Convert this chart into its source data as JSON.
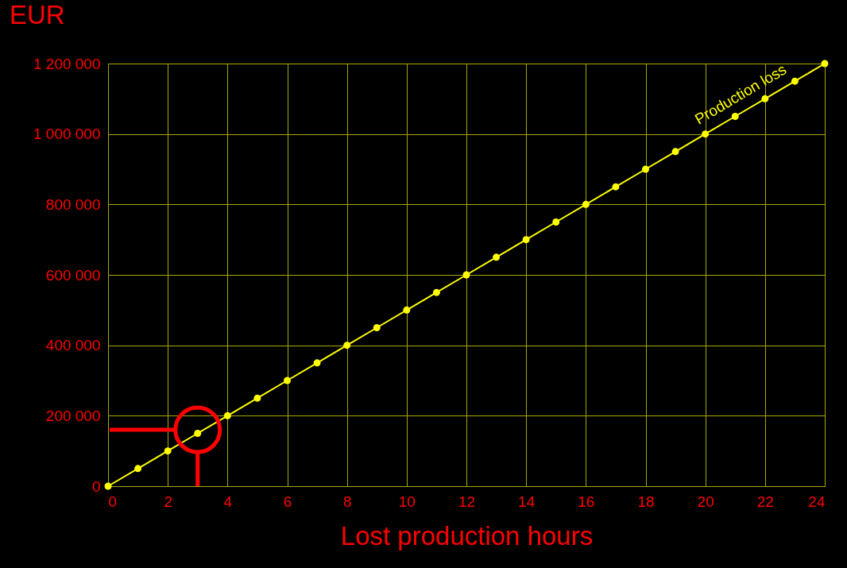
{
  "chart_data": {
    "type": "line",
    "title": "EUR",
    "xlabel": "Lost production hours",
    "x": [
      0,
      1,
      2,
      3,
      4,
      5,
      6,
      7,
      8,
      9,
      10,
      11,
      12,
      13,
      14,
      15,
      16,
      17,
      18,
      19,
      20,
      21,
      22,
      23,
      24
    ],
    "series": [
      {
        "name": "Production loss",
        "color": "#ffff00",
        "values": [
          0,
          50000,
          100000,
          150000,
          200000,
          250000,
          300000,
          350000,
          400000,
          450000,
          500000,
          550000,
          600000,
          650000,
          700000,
          750000,
          800000,
          850000,
          900000,
          950000,
          1000000,
          1050000,
          1100000,
          1150000,
          1200000
        ]
      }
    ],
    "xlim": [
      0,
      24
    ],
    "xticks": [
      0,
      2,
      4,
      6,
      8,
      10,
      12,
      14,
      16,
      18,
      20,
      22,
      24
    ],
    "ylim": [
      0,
      1200000
    ],
    "yticks": [
      0,
      {
        "value": 200000,
        "label": "200 000"
      },
      {
        "value": 400000,
        "label": "400 000"
      },
      {
        "value": 600000,
        "label": "600 000"
      },
      {
        "value": 800000,
        "label": "800 000"
      },
      {
        "value": 1000000,
        "label": "1 000 000"
      },
      {
        "value": 1200000,
        "label": "1 200 000"
      }
    ],
    "grid": true,
    "marker": "circle",
    "line_style": "solid"
  }
}
